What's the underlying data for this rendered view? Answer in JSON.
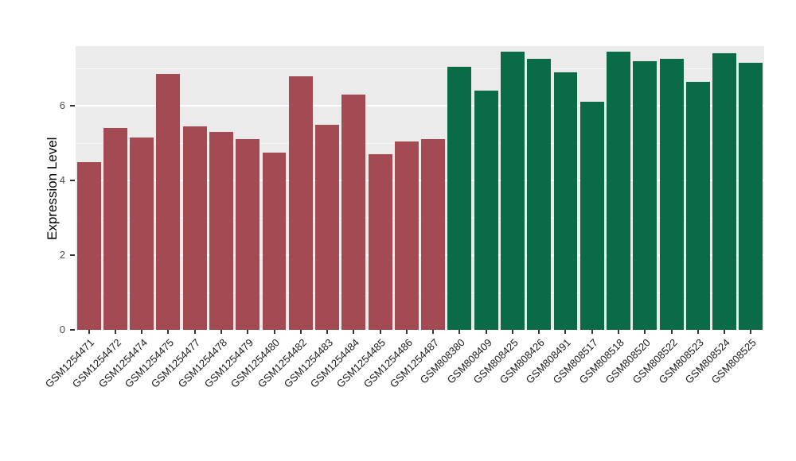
{
  "chart_data": {
    "type": "bar",
    "title": "",
    "xlabel": "",
    "ylabel": "Expression Level",
    "ylim": [
      0,
      7.6
    ],
    "yticks": [
      0,
      2,
      4,
      6
    ],
    "minor_ticks": [
      1,
      3,
      5,
      7
    ],
    "legend": "none",
    "panel_bg": "#EBEBEB",
    "grid_color": "#FFFFFF",
    "bar_groups": {
      "left": "#A34A53",
      "right": "#0C6B47"
    },
    "bars": [
      {
        "label": "GSM1254471",
        "value": 4.5,
        "group": "left"
      },
      {
        "label": "GSM1254472",
        "value": 5.4,
        "group": "left"
      },
      {
        "label": "GSM1254474",
        "value": 5.15,
        "group": "left"
      },
      {
        "label": "GSM1254475",
        "value": 6.85,
        "group": "left"
      },
      {
        "label": "GSM1254477",
        "value": 5.45,
        "group": "left"
      },
      {
        "label": "GSM1254478",
        "value": 5.3,
        "group": "left"
      },
      {
        "label": "GSM1254479",
        "value": 5.1,
        "group": "left"
      },
      {
        "label": "GSM1254480",
        "value": 4.75,
        "group": "left"
      },
      {
        "label": "GSM1254482",
        "value": 6.8,
        "group": "left"
      },
      {
        "label": "GSM1254483",
        "value": 5.5,
        "group": "left"
      },
      {
        "label": "GSM1254484",
        "value": 6.3,
        "group": "left"
      },
      {
        "label": "GSM1254485",
        "value": 4.7,
        "group": "left"
      },
      {
        "label": "GSM1254486",
        "value": 5.05,
        "group": "left"
      },
      {
        "label": "GSM1254487",
        "value": 5.1,
        "group": "left"
      },
      {
        "label": "GSM808380",
        "value": 7.05,
        "group": "right"
      },
      {
        "label": "GSM808409",
        "value": 6.4,
        "group": "right"
      },
      {
        "label": "GSM808425",
        "value": 7.45,
        "group": "right"
      },
      {
        "label": "GSM808426",
        "value": 7.25,
        "group": "right"
      },
      {
        "label": "GSM808491",
        "value": 6.9,
        "group": "right"
      },
      {
        "label": "GSM808517",
        "value": 6.1,
        "group": "right"
      },
      {
        "label": "GSM808518",
        "value": 7.45,
        "group": "right"
      },
      {
        "label": "GSM808520",
        "value": 7.2,
        "group": "right"
      },
      {
        "label": "GSM808522",
        "value": 7.25,
        "group": "right"
      },
      {
        "label": "GSM808523",
        "value": 6.65,
        "group": "right"
      },
      {
        "label": "GSM808524",
        "value": 7.4,
        "group": "right"
      },
      {
        "label": "GSM808525",
        "value": 7.15,
        "group": "right"
      }
    ]
  }
}
